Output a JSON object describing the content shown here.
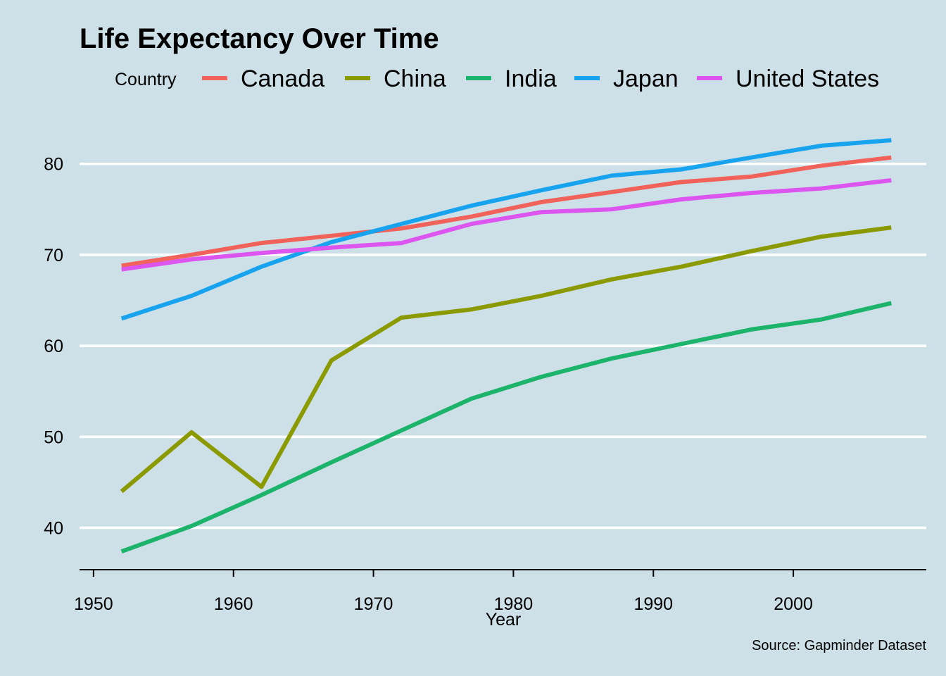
{
  "chart_data": {
    "type": "line",
    "title": "Life Expectancy Over Time",
    "caption": "Source: Gapminder Dataset",
    "xlabel": "Year",
    "ylabel": "",
    "legend_title": "Country",
    "legend_position": "top",
    "grid": "horizontal major",
    "xlim": [
      1949,
      2009.5
    ],
    "ylim": [
      35.4,
      86.4
    ],
    "x_ticks": [
      1950,
      1960,
      1970,
      1980,
      1990,
      2000
    ],
    "y_ticks": [
      40,
      50,
      60,
      70,
      80
    ],
    "x": [
      1952,
      1957,
      1962,
      1967,
      1972,
      1977,
      1982,
      1987,
      1992,
      1997,
      2002,
      2007
    ],
    "series": [
      {
        "name": "Canada",
        "color": "#f0625a",
        "values": [
          68.8,
          70.0,
          71.3,
          72.1,
          72.9,
          74.2,
          75.8,
          76.9,
          78.0,
          78.6,
          79.8,
          80.7
        ]
      },
      {
        "name": "China",
        "color": "#8b9a00",
        "values": [
          44.0,
          50.5,
          44.5,
          58.4,
          63.1,
          64.0,
          65.5,
          67.3,
          68.7,
          70.4,
          72.0,
          73.0
        ]
      },
      {
        "name": "India",
        "color": "#1cb36a",
        "values": [
          37.4,
          40.2,
          43.6,
          47.2,
          50.7,
          54.2,
          56.6,
          58.6,
          60.2,
          61.8,
          62.9,
          64.7
        ]
      },
      {
        "name": "Japan",
        "color": "#18a3ef",
        "values": [
          63.0,
          65.5,
          68.7,
          71.4,
          73.4,
          75.4,
          77.1,
          78.7,
          79.4,
          80.7,
          82.0,
          82.6
        ]
      },
      {
        "name": "United States",
        "color": "#dc55ef",
        "values": [
          68.4,
          69.5,
          70.2,
          70.8,
          71.3,
          73.4,
          74.7,
          75.0,
          76.1,
          76.8,
          77.3,
          78.2
        ]
      }
    ]
  }
}
